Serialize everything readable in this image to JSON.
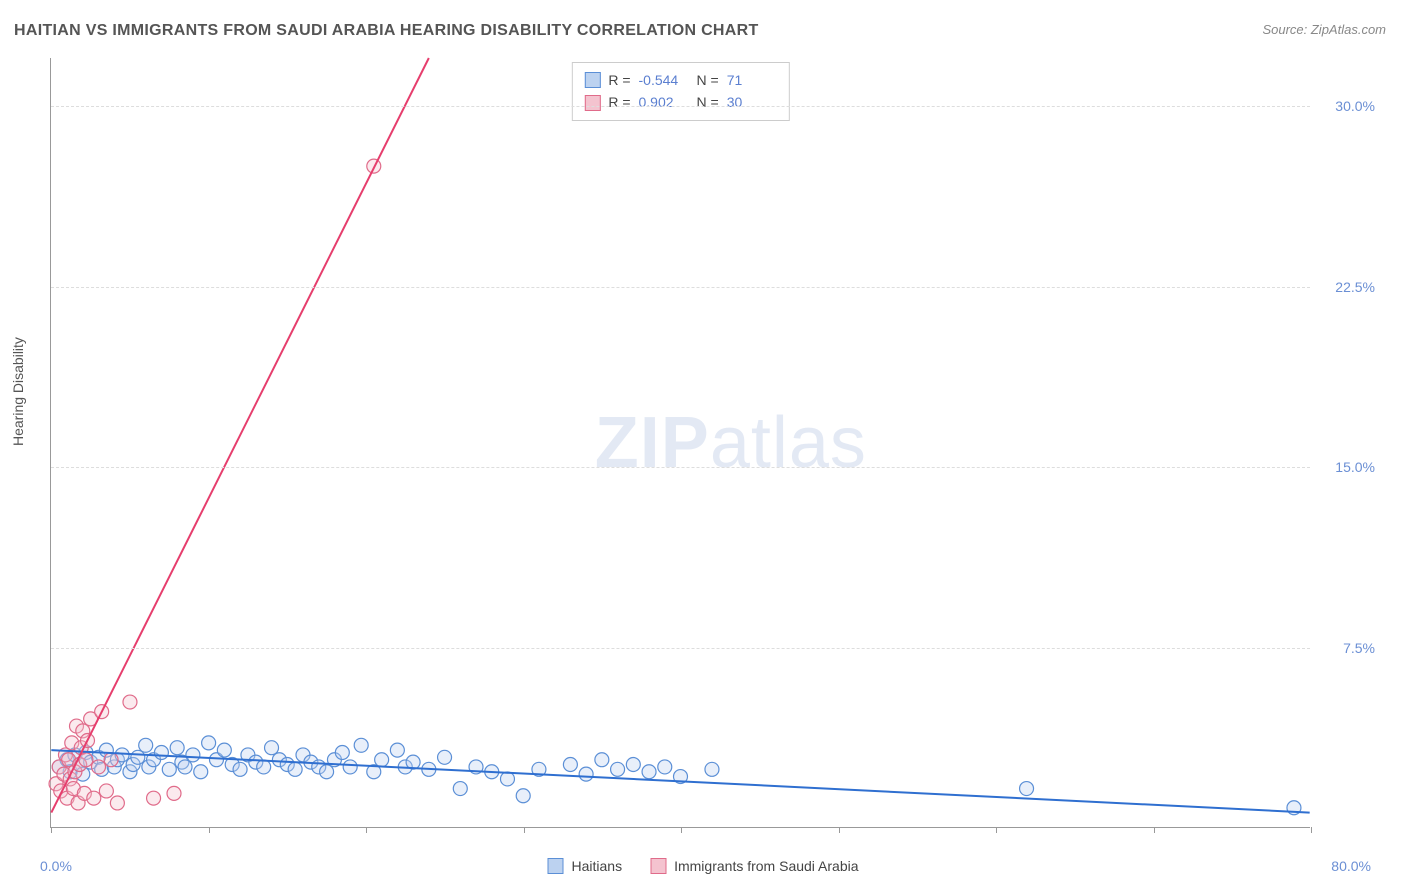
{
  "title": "HAITIAN VS IMMIGRANTS FROM SAUDI ARABIA HEARING DISABILITY CORRELATION CHART",
  "source": "Source: ZipAtlas.com",
  "y_axis_title": "Hearing Disability",
  "watermark": {
    "zip": "ZIP",
    "atlas": "atlas"
  },
  "chart": {
    "type": "scatter-with-regression",
    "background_color": "#ffffff",
    "grid_color": "#dddddd",
    "axis_color": "#999999",
    "xlim": [
      0,
      80
    ],
    "ylim": [
      0,
      32
    ],
    "x_ticks": [
      0,
      10,
      20,
      30,
      40,
      50,
      60,
      70,
      80
    ],
    "y_ticks": [
      7.5,
      15.0,
      22.5,
      30.0
    ],
    "y_tick_labels": [
      "7.5%",
      "15.0%",
      "22.5%",
      "30.0%"
    ],
    "x_label_min": "0.0%",
    "x_label_max": "80.0%",
    "tick_label_color": "#6b8fd4",
    "tick_label_fontsize": 14,
    "marker_radius": 7,
    "marker_fill_opacity": 0.35,
    "marker_stroke_width": 1.2,
    "line_width": 2
  },
  "stats_legend": [
    {
      "swatch_fill": "#bcd2f0",
      "swatch_border": "#5b8fd6",
      "r_label": "R =",
      "r_value": "-0.544",
      "n_label": "N =",
      "n_value": "71"
    },
    {
      "swatch_fill": "#f4c3cf",
      "swatch_border": "#e06b8a",
      "r_label": "R =",
      "r_value": "0.902",
      "n_label": "N =",
      "n_value": "30"
    }
  ],
  "bottom_legend": [
    {
      "swatch_fill": "#bcd2f0",
      "swatch_border": "#5b8fd6",
      "label": "Haitians"
    },
    {
      "swatch_fill": "#f4c3cf",
      "swatch_border": "#e06b8a",
      "label": "Immigrants from Saudi Arabia"
    }
  ],
  "series": [
    {
      "name": "Haitians",
      "color_fill": "#bcd2f0",
      "color_stroke": "#5b8fd6",
      "regression": {
        "x1": 0,
        "y1": 3.2,
        "x2": 80,
        "y2": 0.6,
        "color": "#2f6fd0"
      },
      "points": [
        [
          0.5,
          2.5
        ],
        [
          1.0,
          2.8
        ],
        [
          1.2,
          2.3
        ],
        [
          1.5,
          3.0
        ],
        [
          1.8,
          2.6
        ],
        [
          2.0,
          2.2
        ],
        [
          2.2,
          3.1
        ],
        [
          2.5,
          2.7
        ],
        [
          3.0,
          2.9
        ],
        [
          3.2,
          2.4
        ],
        [
          3.5,
          3.2
        ],
        [
          4.0,
          2.5
        ],
        [
          4.2,
          2.8
        ],
        [
          4.5,
          3.0
        ],
        [
          5.0,
          2.3
        ],
        [
          5.2,
          2.6
        ],
        [
          5.5,
          2.9
        ],
        [
          6.0,
          3.4
        ],
        [
          6.2,
          2.5
        ],
        [
          6.5,
          2.8
        ],
        [
          7.0,
          3.1
        ],
        [
          7.5,
          2.4
        ],
        [
          8.0,
          3.3
        ],
        [
          8.3,
          2.7
        ],
        [
          8.5,
          2.5
        ],
        [
          9.0,
          3.0
        ],
        [
          9.5,
          2.3
        ],
        [
          10.0,
          3.5
        ],
        [
          10.5,
          2.8
        ],
        [
          11.0,
          3.2
        ],
        [
          11.5,
          2.6
        ],
        [
          12.0,
          2.4
        ],
        [
          12.5,
          3.0
        ],
        [
          13.0,
          2.7
        ],
        [
          13.5,
          2.5
        ],
        [
          14.0,
          3.3
        ],
        [
          14.5,
          2.8
        ],
        [
          15.0,
          2.6
        ],
        [
          15.5,
          2.4
        ],
        [
          16.0,
          3.0
        ],
        [
          16.5,
          2.7
        ],
        [
          17.0,
          2.5
        ],
        [
          17.5,
          2.3
        ],
        [
          18.0,
          2.8
        ],
        [
          18.5,
          3.1
        ],
        [
          19.0,
          2.5
        ],
        [
          19.7,
          3.4
        ],
        [
          20.5,
          2.3
        ],
        [
          21.0,
          2.8
        ],
        [
          22.0,
          3.2
        ],
        [
          22.5,
          2.5
        ],
        [
          23.0,
          2.7
        ],
        [
          24.0,
          2.4
        ],
        [
          25.0,
          2.9
        ],
        [
          26.0,
          1.6
        ],
        [
          27.0,
          2.5
        ],
        [
          28.0,
          2.3
        ],
        [
          29.0,
          2.0
        ],
        [
          30.0,
          1.3
        ],
        [
          31.0,
          2.4
        ],
        [
          33.0,
          2.6
        ],
        [
          34.0,
          2.2
        ],
        [
          35.0,
          2.8
        ],
        [
          36.0,
          2.4
        ],
        [
          37.0,
          2.6
        ],
        [
          38.0,
          2.3
        ],
        [
          39.0,
          2.5
        ],
        [
          40.0,
          2.1
        ],
        [
          42.0,
          2.4
        ],
        [
          62.0,
          1.6
        ],
        [
          79.0,
          0.8
        ]
      ]
    },
    {
      "name": "Immigrants from Saudi Arabia",
      "color_fill": "#f4c3cf",
      "color_stroke": "#e06b8a",
      "regression": {
        "x1": 0,
        "y1": 0.6,
        "x2": 24,
        "y2": 32,
        "color": "#e63e6d"
      },
      "points": [
        [
          0.3,
          1.8
        ],
        [
          0.5,
          2.5
        ],
        [
          0.6,
          1.5
        ],
        [
          0.8,
          2.2
        ],
        [
          0.9,
          3.0
        ],
        [
          1.0,
          1.2
        ],
        [
          1.1,
          2.8
        ],
        [
          1.2,
          2.0
        ],
        [
          1.3,
          3.5
        ],
        [
          1.4,
          1.6
        ],
        [
          1.5,
          2.3
        ],
        [
          1.6,
          4.2
        ],
        [
          1.7,
          1.0
        ],
        [
          1.8,
          2.6
        ],
        [
          1.9,
          3.3
        ],
        [
          2.0,
          4.0
        ],
        [
          2.1,
          1.4
        ],
        [
          2.2,
          2.8
        ],
        [
          2.3,
          3.6
        ],
        [
          2.5,
          4.5
        ],
        [
          2.7,
          1.2
        ],
        [
          3.0,
          2.5
        ],
        [
          3.2,
          4.8
        ],
        [
          3.5,
          1.5
        ],
        [
          3.8,
          2.8
        ],
        [
          4.2,
          1.0
        ],
        [
          5.0,
          5.2
        ],
        [
          6.5,
          1.2
        ],
        [
          7.8,
          1.4
        ],
        [
          20.5,
          27.5
        ]
      ]
    }
  ]
}
